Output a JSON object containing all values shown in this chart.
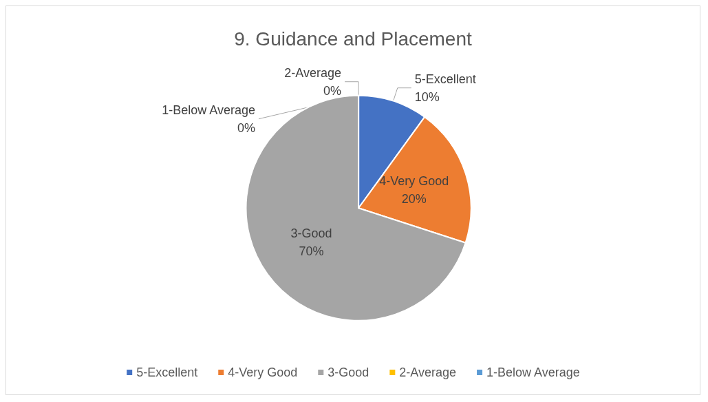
{
  "chart_data": {
    "type": "pie",
    "title": "9. Guidance and Placement",
    "categories": [
      "5-Excellent",
      "4-Very Good",
      "3-Good",
      "2-Average",
      "1-Below Average"
    ],
    "values": [
      10,
      20,
      70,
      0,
      0
    ],
    "colors": [
      "#4472c4",
      "#ed7d31",
      "#a5a5a5",
      "#ffc000",
      "#5b9bd5"
    ],
    "value_labels": [
      "10%",
      "20%",
      "70%",
      "0%",
      "0%"
    ],
    "legend": "bottom"
  }
}
